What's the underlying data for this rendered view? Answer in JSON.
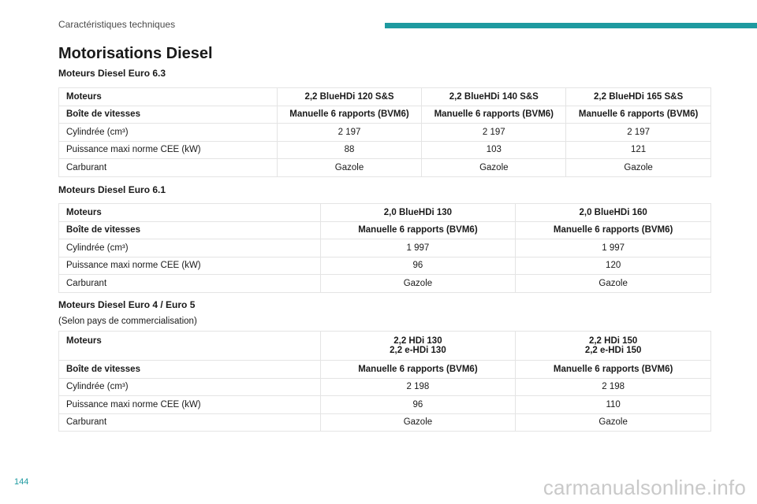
{
  "header": {
    "section_label": "Caractéristiques techniques",
    "accent_color": "#1e9aa0"
  },
  "page": {
    "title": "Motorisations Diesel",
    "number": "144"
  },
  "watermark": "carmanualsonline.info",
  "sections": [
    {
      "title": "Moteurs Diesel Euro 6.3",
      "note": "",
      "rows": [
        {
          "label": "Moteurs",
          "values": [
            "2,2 BlueHDi 120 S&S",
            "2,2 BlueHDi 140 S&S",
            "2,2 BlueHDi 165 S&S"
          ]
        },
        {
          "label": "Boîte de vitesses",
          "values": [
            "Manuelle 6 rapports (BVM6)",
            "Manuelle 6 rapports (BVM6)",
            "Manuelle 6 rapports (BVM6)"
          ]
        },
        {
          "label": "Cylindrée (cm³)",
          "values": [
            "2 197",
            "2 197",
            "2 197"
          ]
        },
        {
          "label": "Puissance maxi norme CEE (kW)",
          "values": [
            "88",
            "103",
            "121"
          ]
        },
        {
          "label": "Carburant",
          "values": [
            "Gazole",
            "Gazole",
            "Gazole"
          ]
        }
      ]
    },
    {
      "title": "Moteurs Diesel Euro 6.1",
      "note": "",
      "rows": [
        {
          "label": "Moteurs",
          "values": [
            "2,0 BlueHDi 130",
            "2,0 BlueHDi 160"
          ]
        },
        {
          "label": "Boîte de vitesses",
          "values": [
            "Manuelle 6 rapports (BVM6)",
            "Manuelle 6 rapports (BVM6)"
          ]
        },
        {
          "label": "Cylindrée (cm³)",
          "values": [
            "1 997",
            "1 997"
          ]
        },
        {
          "label": "Puissance maxi norme CEE (kW)",
          "values": [
            "96",
            "120"
          ]
        },
        {
          "label": "Carburant",
          "values": [
            "Gazole",
            "Gazole"
          ]
        }
      ]
    },
    {
      "title": "Moteurs Diesel Euro 4 / Euro 5",
      "note": "(Selon pays de commercialisation)",
      "rows": [
        {
          "label": "Moteurs",
          "values": [
            [
              "2,2 HDi 130",
              "2,2 e-HDi 130"
            ],
            [
              "2,2 HDi 150",
              "2,2 e-HDi 150"
            ]
          ]
        },
        {
          "label": "Boîte de vitesses",
          "values": [
            "Manuelle 6 rapports (BVM6)",
            "Manuelle 6 rapports (BVM6)"
          ]
        },
        {
          "label": "Cylindrée (cm³)",
          "values": [
            "2 198",
            "2 198"
          ]
        },
        {
          "label": "Puissance maxi norme CEE (kW)",
          "values": [
            "96",
            "110"
          ]
        },
        {
          "label": "Carburant",
          "values": [
            "Gazole",
            "Gazole"
          ]
        }
      ]
    }
  ]
}
